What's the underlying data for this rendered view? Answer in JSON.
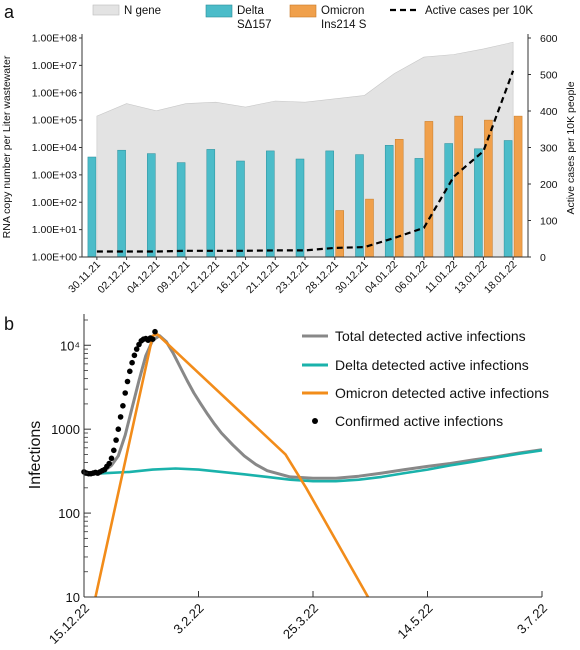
{
  "panel_a_label": "a",
  "panel_b_label": "b",
  "chart_data": [
    {
      "panel": "a",
      "type": "bar",
      "categories": [
        "30.11.21",
        "02.12.21",
        "04.12.21",
        "09.12.21",
        "12.12.21",
        "16.12.21",
        "21.12.21",
        "23.12.21",
        "28.12.21",
        "30.12.21",
        "04.01.22",
        "06.01.22",
        "11.01.22",
        "13.01.22",
        "18.01.22"
      ],
      "ylabel": "RNA copy number per Liter wastewater",
      "ylabel_right": "Active cases per 10K people",
      "yscale": "log",
      "ylim": [
        1,
        100000000
      ],
      "yticks": [
        "1.00E+00",
        "1.00E+01",
        "1.00E+02",
        "1.00E+03",
        "1.00E+04",
        "1.00E+05",
        "1.00E+06",
        "1.00E+07",
        "1.00E+08"
      ],
      "ylim_right": [
        0,
        600
      ],
      "yticks_right": [
        "0",
        "100",
        "200",
        "300",
        "400",
        "500",
        "600"
      ],
      "legend_position": "top",
      "series": [
        {
          "name": "N gene",
          "kind": "area",
          "color": "#e3e3e3",
          "values": [
            140000,
            400000,
            220000,
            400000,
            450000,
            300000,
            500000,
            450000,
            600000,
            800000,
            5000000,
            20000000,
            25000000,
            40000000,
            70000000
          ]
        },
        {
          "name": "Delta SΔ157",
          "legend_lines": [
            "Delta",
            "SΔ157"
          ],
          "kind": "bar",
          "color": "#4bbcc9",
          "values": [
            4500,
            8000,
            6000,
            2800,
            8500,
            3200,
            7500,
            3800,
            7500,
            5500,
            12000,
            4000,
            14000,
            9000,
            18000
          ]
        },
        {
          "name": "Omicron Ins214 S",
          "legend_lines": [
            "Omicron",
            "Ins214 S"
          ],
          "kind": "bar",
          "color": "#f0a04b",
          "values": [
            null,
            null,
            null,
            null,
            null,
            null,
            null,
            null,
            50,
            130,
            20000,
            90000,
            140000,
            100000,
            140000
          ]
        },
        {
          "name": "Active cases per 10K",
          "kind": "line",
          "style": "dashed",
          "axis": "right",
          "color": "#000000",
          "values": [
            15,
            15,
            15,
            17,
            17,
            17,
            18,
            18,
            25,
            27,
            52,
            80,
            220,
            290,
            510
          ]
        }
      ]
    },
    {
      "panel": "b",
      "type": "line",
      "ylabel": "Infections",
      "yscale": "log",
      "ylim": [
        10,
        20000
      ],
      "yticks": [
        "10",
        "100",
        "1000",
        "10⁴"
      ],
      "xticks": [
        "15.12.22",
        "3.2.22",
        "25.3.22",
        "14.5.22",
        "3.7.22"
      ],
      "legend_position": "top-right",
      "series": [
        {
          "name": "Total detected active infections",
          "color": "#888888",
          "x": [
            0,
            3,
            6,
            9,
            12,
            15,
            18,
            21,
            24,
            27,
            30,
            33,
            36,
            39,
            42,
            45,
            48,
            51,
            54,
            57,
            60,
            65,
            70,
            75,
            80,
            90,
            100,
            110,
            120,
            130,
            140,
            150,
            160,
            170,
            180,
            190,
            200
          ],
          "y": [
            300,
            300,
            305,
            320,
            370,
            480,
            850,
            1800,
            3800,
            7500,
            11500,
            13000,
            11000,
            8000,
            5500,
            3800,
            2700,
            2000,
            1500,
            1150,
            900,
            650,
            480,
            380,
            320,
            270,
            260,
            260,
            275,
            300,
            330,
            360,
            390,
            430,
            470,
            520,
            570
          ]
        },
        {
          "name": "Delta detected active infections",
          "color": "#1ab2ab",
          "x": [
            0,
            10,
            20,
            30,
            40,
            50,
            60,
            70,
            80,
            90,
            100,
            110,
            120,
            130,
            140,
            150,
            160,
            170,
            180,
            190,
            200
          ],
          "y": [
            290,
            300,
            310,
            330,
            340,
            330,
            310,
            290,
            270,
            250,
            240,
            240,
            250,
            270,
            300,
            330,
            370,
            410,
            460,
            510,
            560
          ]
        },
        {
          "name": "Omicron detected active infections",
          "color": "#f28c1a",
          "x": [
            5,
            30,
            32,
            88,
            97,
            124
          ],
          "y": [
            10,
            13000,
            13500,
            500,
            200,
            10
          ]
        },
        {
          "name": "Confirmed active infections",
          "kind": "scatter",
          "color": "#000000",
          "x": [
            0,
            1,
            2,
            3,
            4,
            5,
            6,
            7,
            8,
            9,
            10,
            11,
            12,
            13,
            14,
            15,
            16,
            17,
            18,
            19,
            20,
            21,
            22,
            23,
            24,
            25,
            26,
            27,
            28,
            29,
            30,
            31
          ],
          "y": [
            310,
            300,
            295,
            295,
            300,
            305,
            300,
            310,
            320,
            330,
            360,
            390,
            450,
            560,
            740,
            1000,
            1400,
            1900,
            2700,
            3700,
            4900,
            6200,
            7600,
            9000,
            10200,
            11300,
            11800,
            12000,
            11500,
            12200,
            11800,
            14500
          ]
        }
      ]
    }
  ]
}
